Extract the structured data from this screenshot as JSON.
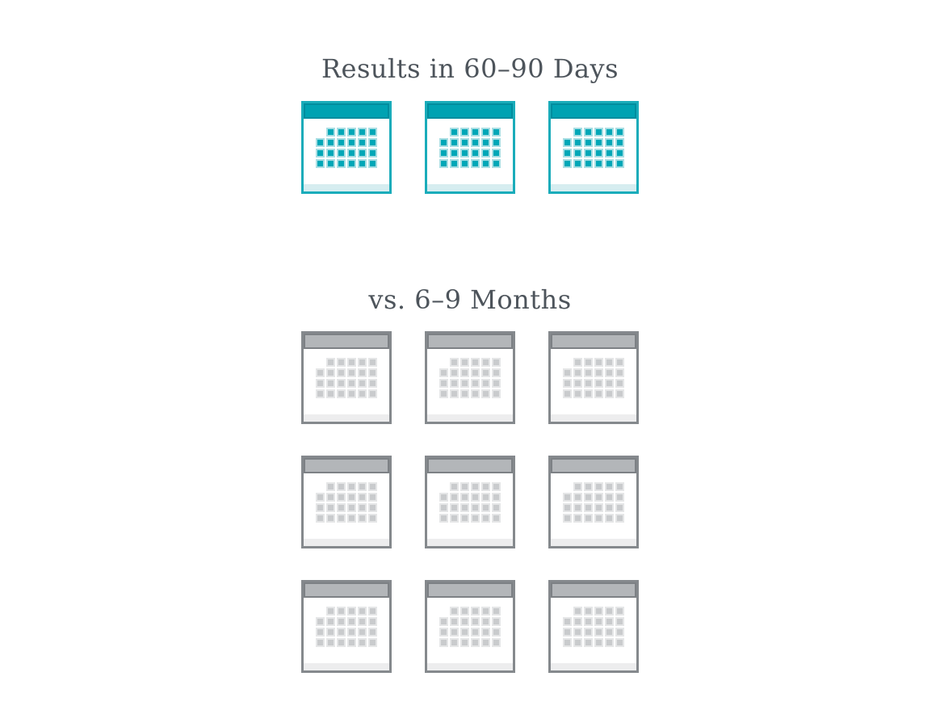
{
  "page": {
    "background": "#ffffff",
    "text_color": "#4d545b"
  },
  "sections": [
    {
      "title": "Results in 60–90 Days",
      "calendar_count": 3,
      "columns": 3,
      "theme": {
        "frame": "#1aacba",
        "header_fill": "#00a2b2",
        "header_border": "#008d9e",
        "body": "#ffffff",
        "dot": "#00a7b7",
        "dot_outline": "#a8dee3",
        "footer_strip": "#d6edf0"
      }
    },
    {
      "title": "vs. 6–9 Months",
      "calendar_count": 9,
      "columns": 3,
      "theme": {
        "frame": "#85898d",
        "header_fill": "#b3b6b9",
        "header_border": "#7d8185",
        "body": "#ffffff",
        "dot": "#c9cbcd",
        "dot_outline": "#e5e6e7",
        "footer_strip": "#ededee"
      }
    }
  ],
  "calendar_icon": {
    "dot_rows": 4,
    "dot_columns": 6,
    "first_dot_hidden": true
  }
}
